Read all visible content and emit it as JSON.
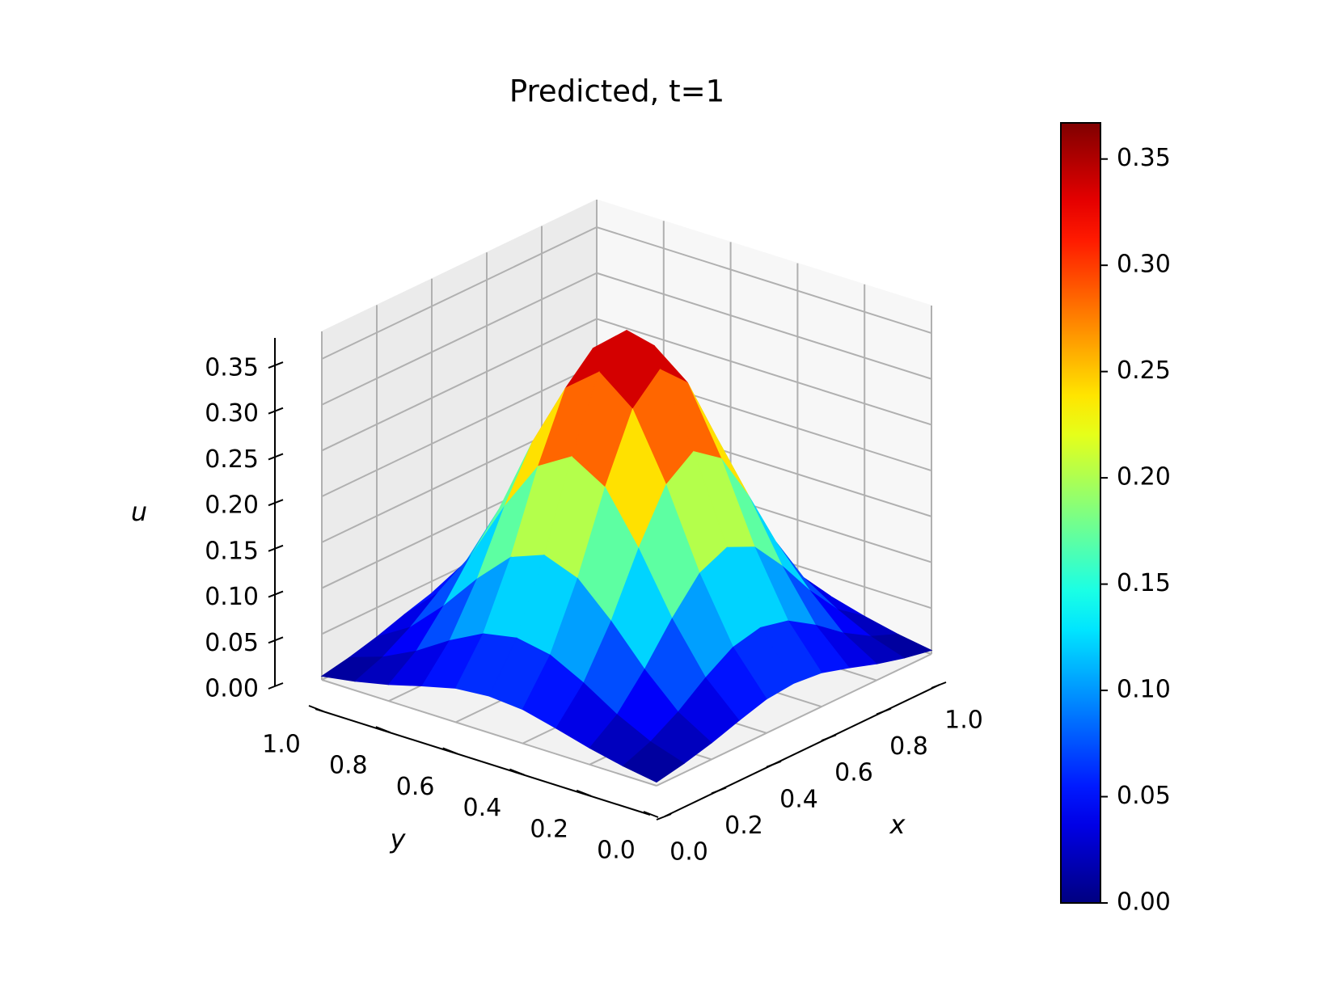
{
  "chart_data": {
    "type": "surface",
    "title": "Predicted, t=1",
    "xlabel": "x",
    "ylabel": "y",
    "zlabel": "u",
    "x": [
      0,
      0.1,
      0.2,
      0.3,
      0.4,
      0.5,
      0.6,
      0.7,
      0.8,
      0.9,
      1
    ],
    "y": [
      0,
      0.1,
      0.2,
      0.3,
      0.4,
      0.5,
      0.6,
      0.7,
      0.8,
      0.9,
      1
    ],
    "z": [
      [
        0.004,
        0.01,
        0.018,
        0.028,
        0.037,
        0.04,
        0.037,
        0.028,
        0.018,
        0.01,
        0.004
      ],
      [
        0.01,
        0.022,
        0.04,
        0.063,
        0.082,
        0.089,
        0.082,
        0.063,
        0.04,
        0.022,
        0.01
      ],
      [
        0.018,
        0.04,
        0.075,
        0.116,
        0.151,
        0.165,
        0.151,
        0.116,
        0.075,
        0.04,
        0.018
      ],
      [
        0.028,
        0.063,
        0.116,
        0.181,
        0.236,
        0.258,
        0.236,
        0.181,
        0.116,
        0.063,
        0.028
      ],
      [
        0.037,
        0.082,
        0.151,
        0.236,
        0.307,
        0.336,
        0.307,
        0.236,
        0.151,
        0.082,
        0.037
      ],
      [
        0.04,
        0.089,
        0.165,
        0.258,
        0.336,
        0.367,
        0.336,
        0.258,
        0.165,
        0.089,
        0.04
      ],
      [
        0.037,
        0.082,
        0.151,
        0.236,
        0.307,
        0.336,
        0.307,
        0.236,
        0.151,
        0.082,
        0.037
      ],
      [
        0.028,
        0.063,
        0.116,
        0.181,
        0.236,
        0.258,
        0.236,
        0.181,
        0.116,
        0.063,
        0.028
      ],
      [
        0.018,
        0.04,
        0.075,
        0.116,
        0.151,
        0.165,
        0.151,
        0.116,
        0.075,
        0.04,
        0.018
      ],
      [
        0.01,
        0.022,
        0.04,
        0.063,
        0.082,
        0.089,
        0.082,
        0.063,
        0.04,
        0.022,
        0.01
      ],
      [
        0.004,
        0.01,
        0.018,
        0.028,
        0.037,
        0.04,
        0.037,
        0.028,
        0.018,
        0.01,
        0.004
      ]
    ],
    "xlim": [
      0,
      1
    ],
    "ylim": [
      0,
      1
    ],
    "zlim": [
      0,
      0.38
    ],
    "xticks": [
      {
        "value": 0,
        "label": "0.0"
      },
      0.2,
      0.4,
      0.6,
      0.8,
      {
        "value": 1,
        "label": "1.0"
      }
    ],
    "yticks": [
      {
        "value": 0,
        "label": "0.0"
      },
      0.2,
      0.4,
      0.6,
      0.8,
      {
        "value": 1,
        "label": "1.0"
      }
    ],
    "zticks": [
      {
        "value": 0,
        "label": "0.00"
      },
      0.05,
      {
        "value": 0.1,
        "label": "0.10"
      },
      0.15,
      {
        "value": 0.2,
        "label": "0.20"
      },
      0.25,
      {
        "value": 0.3,
        "label": "0.30"
      },
      0.35
    ],
    "colormap": "jet",
    "clim": [
      0,
      0.367
    ],
    "colorbar_ticks": [
      {
        "value": 0,
        "label": "0.00"
      },
      0.05,
      {
        "value": 0.1,
        "label": "0.10"
      },
      0.15,
      {
        "value": 0.2,
        "label": "0.20"
      },
      0.25,
      {
        "value": 0.3,
        "label": "0.30"
      },
      0.35
    ],
    "grid": true
  }
}
